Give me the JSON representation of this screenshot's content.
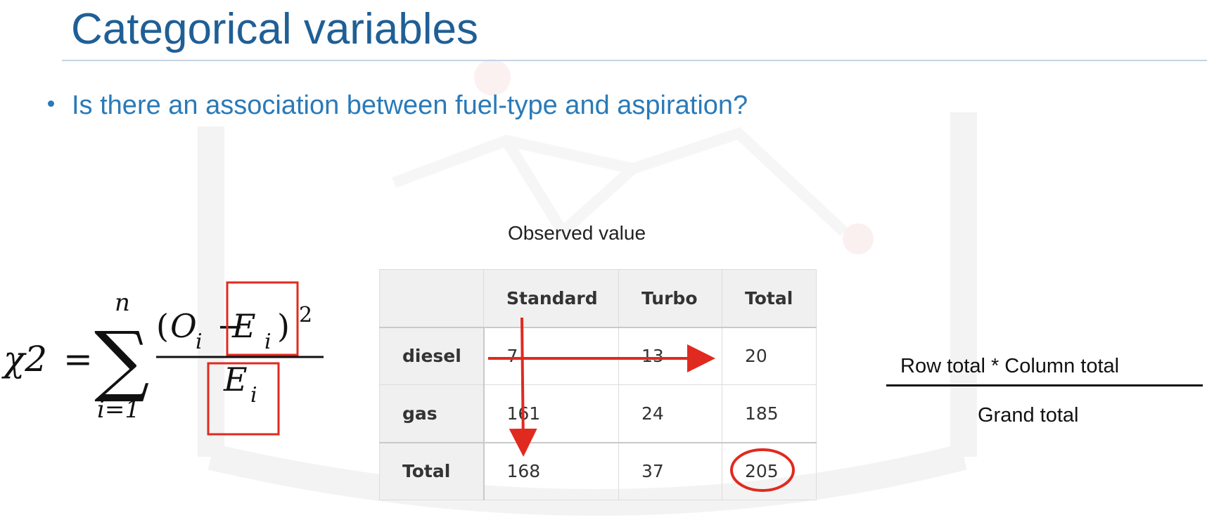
{
  "slide": {
    "title": "Categorical variables",
    "bullet": "Is there an association between fuel-type and aspiration?"
  },
  "formula": {
    "lhs": "χ2",
    "equals": "=",
    "sum_symbol": "∑",
    "upper_limit": "n",
    "lower_limit": "i=1",
    "numerator_open": "(",
    "O": "O",
    "i": "i",
    "minus": "−",
    "E": "E",
    "numerator_close": ")",
    "power": "2"
  },
  "observed_table": {
    "caption": "Observed value",
    "columns": [
      "",
      "Standard",
      "Turbo",
      "Total"
    ],
    "rows": [
      {
        "label": "diesel",
        "values": [
          "7",
          "13",
          "20"
        ]
      },
      {
        "label": "gas",
        "values": [
          "161",
          "24",
          "185"
        ]
      },
      {
        "label": "Total",
        "values": [
          "168",
          "37",
          "205"
        ]
      }
    ]
  },
  "expected_formula": {
    "numerator": "Row total    * Column total",
    "denominator": "Grand total"
  },
  "colors": {
    "title": "#1f5f96",
    "bullet": "#2a7ab8",
    "annotation": "#e02a1f",
    "rule": "#c5d3e4"
  }
}
